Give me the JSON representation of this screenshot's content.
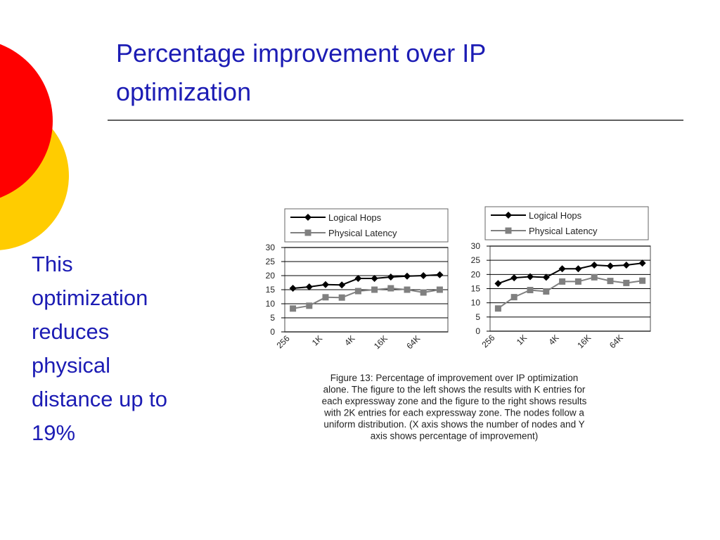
{
  "title": [
    "Percentage improvement over IP",
    "optimization"
  ],
  "body": [
    "This",
    "optimization",
    "reduces",
    "physical",
    "distance up to",
    "19%"
  ],
  "caption": [
    "Figure 13: Percentage of improvement over IP optimization",
    "alone. The figure to the left shows the results with K entries for",
    "each expressway zone and the figure to the right shows results",
    "with 2K entries for each expressway zone. The nodes follow a",
    "uniform distribution. (X axis shows the number of nodes and Y",
    "axis shows percentage of improvement)"
  ],
  "chart_data": [
    {
      "type": "line",
      "categories": [
        "256",
        null,
        "1K",
        null,
        "4K",
        null,
        "16K",
        null,
        "64K",
        null
      ],
      "series": [
        {
          "name": "Logical Hops",
          "color": "#000000",
          "marker": "diamond",
          "values": [
            15.5,
            16,
            16.8,
            16.7,
            19,
            19,
            19.5,
            19.8,
            20,
            20.3
          ]
        },
        {
          "name": "Physical Latency",
          "color": "#808080",
          "marker": "square",
          "values": [
            8.3,
            9.3,
            12.3,
            12.2,
            14.5,
            15,
            15.5,
            15,
            14,
            15
          ]
        }
      ],
      "ylim": [
        0,
        30
      ],
      "yticks": [
        0,
        5,
        10,
        15,
        20,
        25,
        30
      ],
      "grid": true
    },
    {
      "type": "line",
      "categories": [
        "256",
        null,
        "1K",
        null,
        "4K",
        null,
        "16K",
        null,
        "64K",
        null
      ],
      "series": [
        {
          "name": "Logical Hops",
          "color": "#000000",
          "marker": "diamond",
          "values": [
            16.8,
            18.8,
            19.2,
            19,
            22,
            22,
            23.3,
            23,
            23.3,
            24
          ]
        },
        {
          "name": "Physical Latency",
          "color": "#808080",
          "marker": "square",
          "values": [
            8,
            12,
            14.5,
            14,
            17.5,
            17.5,
            19,
            17.7,
            17,
            17.8
          ]
        }
      ],
      "ylim": [
        0,
        30
      ],
      "yticks": [
        0,
        5,
        10,
        15,
        20,
        25,
        30
      ],
      "grid": true
    }
  ]
}
